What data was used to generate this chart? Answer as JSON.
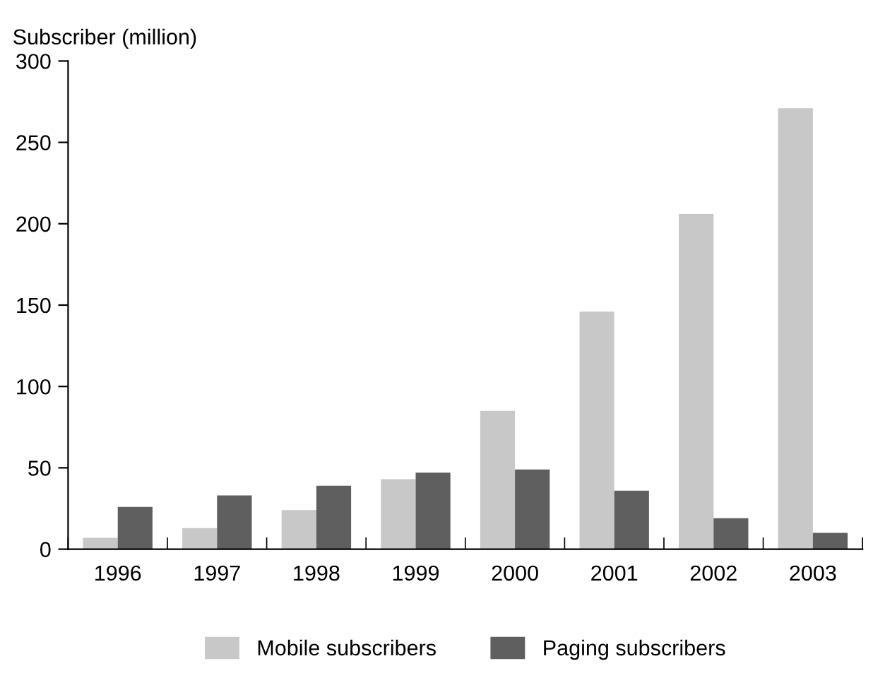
{
  "chart_data": {
    "type": "bar",
    "ylabel": "Subscriber (million)",
    "categories": [
      "1996",
      "1997",
      "1998",
      "1999",
      "2000",
      "2001",
      "2002",
      "2003"
    ],
    "series": [
      {
        "name": "Mobile subscribers",
        "color": "#c8c8c8",
        "values": [
          7,
          13,
          24,
          43,
          85,
          146,
          206,
          271
        ]
      },
      {
        "name": "Paging subscribers",
        "color": "#5f5f5f",
        "values": [
          26,
          33,
          39,
          47,
          49,
          36,
          19,
          10
        ]
      }
    ],
    "ylim": [
      0,
      300
    ],
    "yticks": [
      0,
      50,
      100,
      150,
      200,
      250,
      300
    ],
    "grid": false,
    "legend": "bottom"
  }
}
